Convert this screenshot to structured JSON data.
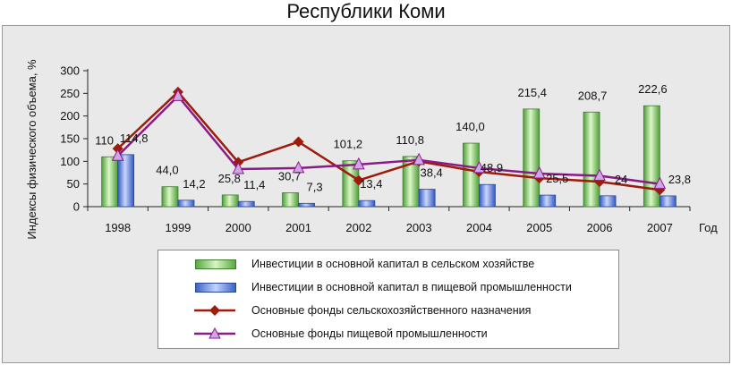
{
  "chart_data": {
    "type": "bar",
    "title": "Республики Коми",
    "ylabel": "Индексы физического объема, %",
    "xlabel": "Год",
    "ylim": [
      0,
      300
    ],
    "yticks": [
      "0",
      "50",
      "100",
      "150",
      "200",
      "250",
      "300"
    ],
    "categories": [
      "1998",
      "1999",
      "2000",
      "2001",
      "2002",
      "2003",
      "2004",
      "2005",
      "2006",
      "2007"
    ],
    "series": [
      {
        "name": "Инвестиции в основной капитал в сельском хозяйстве",
        "kind": "bar",
        "color": "#5aa843",
        "values": [
          110,
          44.0,
          25.8,
          30.7,
          101.2,
          110.8,
          140.0,
          215.4,
          208.7,
          222.6
        ],
        "labels": [
          "110",
          "44,0",
          "25,8",
          "30,7",
          "101,2",
          "110,8",
          "140,0",
          "215,4",
          "208,7",
          "222,6"
        ]
      },
      {
        "name": "Инвестиции в основной капитал в пищевой промышленности",
        "kind": "bar",
        "color": "#3a63c9",
        "values": [
          114.8,
          14.2,
          11.4,
          7.3,
          13.4,
          38.4,
          48.9,
          25.5,
          24,
          23.8
        ],
        "labels": [
          "114,8",
          "14,2",
          "11,4",
          "7,3",
          "13,4",
          "38,4",
          "48,9",
          "25,5",
          "24",
          "23,8"
        ]
      },
      {
        "name": "Основные фонды сельскохозяйственного назначения",
        "kind": "line",
        "color": "#9e1b0c",
        "values": [
          128,
          253,
          98,
          143,
          58,
          100,
          77,
          63,
          55,
          37
        ]
      },
      {
        "name": "Основные фонды пищевой промышленности",
        "kind": "line",
        "color": "#8a1a86",
        "values": [
          112,
          244,
          83,
          85,
          93,
          103,
          85,
          73,
          68,
          50
        ]
      }
    ],
    "grid": false,
    "legend_position": "bottom"
  }
}
